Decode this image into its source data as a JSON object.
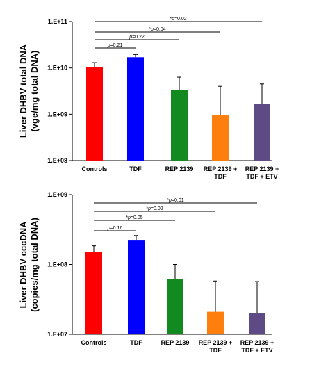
{
  "chart_data": [
    {
      "type": "bar",
      "scale": "log",
      "ylabel_lines": [
        "Liver DHBV total DNA",
        "(vge/mg total DNA)"
      ],
      "ylim": [
        100000000,
        100000000000
      ],
      "ytick_labels": [
        "1.E+08",
        "1.E+09",
        "1.E+10",
        "1.E+11"
      ],
      "categories": [
        [
          "Controls"
        ],
        [
          "TDF"
        ],
        [
          "REP 2139"
        ],
        [
          "REP 2139 +",
          "TDF"
        ],
        [
          "REP 2139 +",
          "TDF + ETV"
        ]
      ],
      "values": [
        10500000000,
        17000000000,
        3300000000,
        950000000,
        1650000000
      ],
      "error_upper": [
        13000000000,
        19500000000,
        6300000000,
        4000000000,
        4500000000
      ],
      "colors": [
        "#ff0000",
        "#0000ff",
        "#138a1f",
        "#ff7f0e",
        "#5e4b85"
      ],
      "comparisons": [
        {
          "from": 0,
          "to": 4,
          "star": "*",
          "p": "p",
          "rest": "=0.02"
        },
        {
          "from": 0,
          "to": 3,
          "star": "*",
          "p": "p",
          "rest": "=0.04"
        },
        {
          "from": 0,
          "to": 2,
          "star": "",
          "p": "p",
          "rest": "=0.22"
        },
        {
          "from": 0,
          "to": 1,
          "star": "",
          "p": "p",
          "rest": "=0.21"
        }
      ]
    },
    {
      "type": "bar",
      "scale": "log",
      "ylabel_lines": [
        "Liver DHBV cccDNA",
        "(copies/mg total DNA)"
      ],
      "ylim": [
        10000000,
        1000000000
      ],
      "ytick_labels": [
        "1.E+07",
        "1.E+08",
        "1.E+09"
      ],
      "categories": [
        [
          "Controls"
        ],
        [
          "TDF"
        ],
        [
          "REP 2139"
        ],
        [
          "REP 2139 +",
          "TDF"
        ],
        [
          "REP 2139 +",
          "TDF + ETV"
        ]
      ],
      "values": [
        150000000,
        220000000,
        62000000,
        21000000,
        20000000
      ],
      "error_upper": [
        185000000,
        260000000,
        100000000,
        58000000,
        57000000
      ],
      "colors": [
        "#ff0000",
        "#0000ff",
        "#138a1f",
        "#ff7f0e",
        "#5e4b85"
      ],
      "comparisons": [
        {
          "from": 0,
          "to": 4,
          "star": "*",
          "p": "p",
          "rest": "=0.01"
        },
        {
          "from": 0,
          "to": 3,
          "star": "*",
          "p": "p",
          "rest": "=0.02"
        },
        {
          "from": 0,
          "to": 2,
          "star": "*",
          "p": "p",
          "rest": "=0.05"
        },
        {
          "from": 0,
          "to": 1,
          "star": "",
          "p": "p",
          "rest": "=0.16"
        }
      ]
    }
  ]
}
